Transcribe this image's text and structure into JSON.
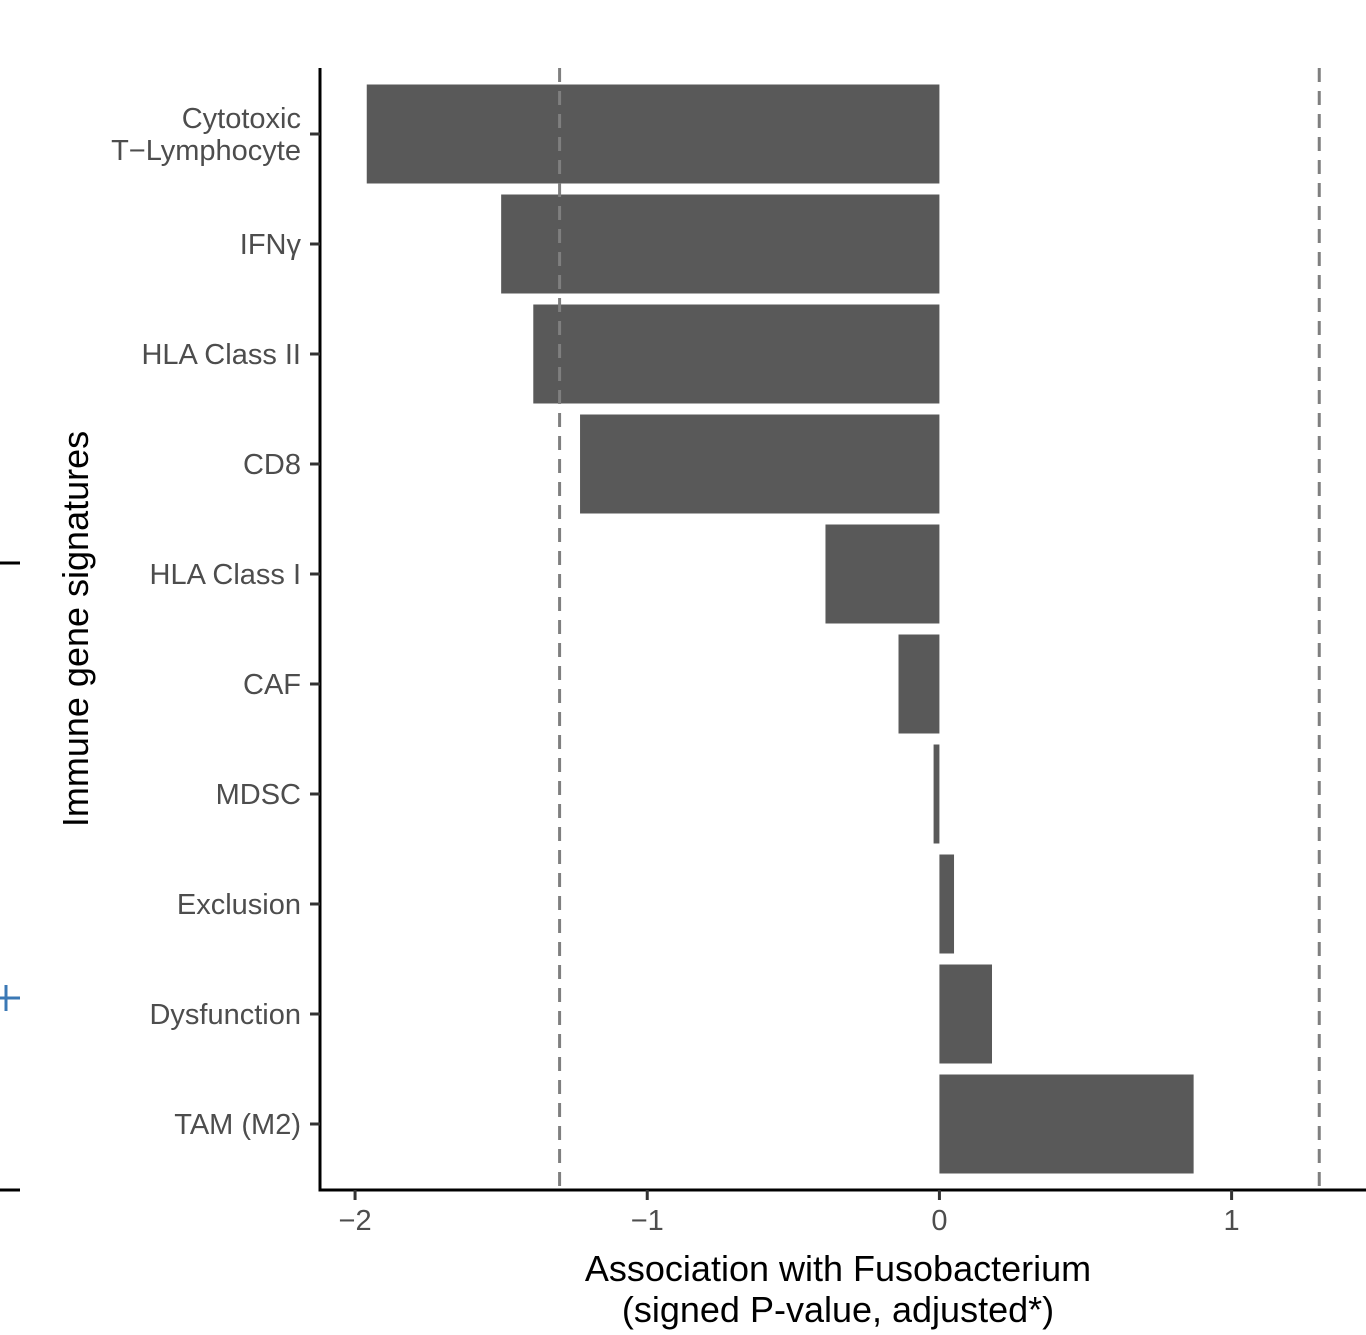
{
  "chart_data": {
    "type": "bar",
    "orientation": "horizontal",
    "categories": [
      "Cytotoxic\nT−Lymphocyte",
      "IFNγ",
      "HLA Class II",
      "CD8",
      "HLA Class I",
      "CAF",
      "MDSC",
      "Exclusion",
      "Dysfunction",
      "TAM (M2)"
    ],
    "values": [
      -1.96,
      -1.5,
      -1.39,
      -1.23,
      -0.39,
      -0.14,
      -0.02,
      0.05,
      0.18,
      0.87
    ],
    "xlabel": "Association with Fusobacterium\n(signed P-value, adjusted*)",
    "ylabel": "Immune gene signatures",
    "xlim": [
      -2.12,
      1.46
    ],
    "xticks": [
      -2,
      -1,
      0,
      1
    ],
    "xtick_labels": [
      "−2",
      "−1",
      "0",
      "1"
    ],
    "reference_lines": [
      -1.3,
      1.3
    ],
    "reference_line_style": "dashed",
    "bar_color": "#595959",
    "reference_line_color": "#7f7f7f",
    "grid": false,
    "legend": "none"
  }
}
